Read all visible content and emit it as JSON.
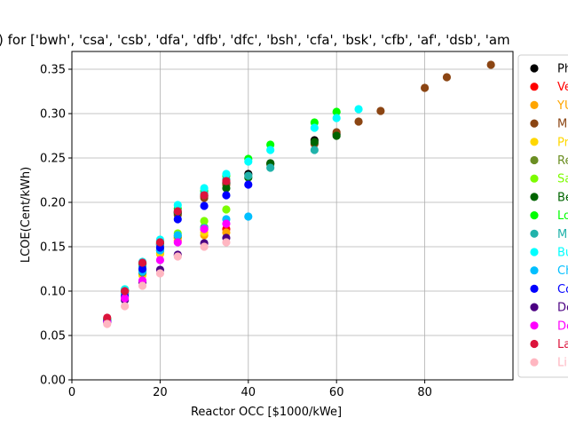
{
  "chart_data": {
    "type": "scatter",
    "title": ") for ['bwh', 'csa', 'csb', 'dfa', 'dfb', 'dfc', 'bsh', 'cfa', 'bsk', 'cfb', 'af', 'dsb', 'am",
    "xlabel": "Reactor OCC [$1000/kWe]",
    "ylabel": "LCOE(Cent/kWh)",
    "xlim": [
      0,
      100
    ],
    "ylim": [
      0,
      0.37
    ],
    "x_ticks": [
      0,
      20,
      40,
      60,
      80
    ],
    "y_ticks": [
      0.0,
      0.05,
      0.1,
      0.15,
      0.2,
      0.25,
      0.3,
      0.35
    ],
    "grid": true,
    "legend_position": "right",
    "series": [
      {
        "name": "Ph",
        "color": "#000000",
        "points": [
          [
            8,
            0.068
          ],
          [
            12,
            0.101
          ],
          [
            16,
            0.131
          ],
          [
            20,
            0.153
          ],
          [
            24,
            0.188
          ],
          [
            30,
            0.207
          ],
          [
            35,
            0.222
          ],
          [
            40,
            0.232
          ],
          [
            45,
            0.244
          ],
          [
            55,
            0.27
          ],
          [
            60,
            0.277
          ]
        ]
      },
      {
        "name": "Ve",
        "color": "#ff0000",
        "points": [
          [
            8,
            0.067
          ],
          [
            12,
            0.097
          ],
          [
            16,
            0.12
          ],
          [
            20,
            0.146
          ],
          [
            24,
            0.16
          ],
          [
            30,
            0.17
          ],
          [
            35,
            0.17
          ]
        ]
      },
      {
        "name": "YU",
        "color": "#ffa500",
        "points": [
          [
            8,
            0.066
          ],
          [
            12,
            0.096
          ],
          [
            16,
            0.118
          ],
          [
            20,
            0.142
          ],
          [
            24,
            0.157
          ],
          [
            30,
            0.163
          ],
          [
            35,
            0.166
          ]
        ]
      },
      {
        "name": "M",
        "color": "#8b4513",
        "points": [
          [
            8,
            0.069
          ],
          [
            12,
            0.1
          ],
          [
            16,
            0.13
          ],
          [
            20,
            0.152
          ],
          [
            24,
            0.186
          ],
          [
            30,
            0.205
          ],
          [
            35,
            0.22
          ],
          [
            45,
            0.243
          ],
          [
            55,
            0.266
          ],
          [
            60,
            0.279
          ],
          [
            65,
            0.291
          ],
          [
            70,
            0.303
          ],
          [
            80,
            0.329
          ],
          [
            85,
            0.341
          ],
          [
            95,
            0.355
          ]
        ]
      },
      {
        "name": "Pr",
        "color": "#ffd700",
        "points": [
          [
            8,
            0.066
          ],
          [
            12,
            0.096
          ],
          [
            16,
            0.118
          ],
          [
            20,
            0.143
          ],
          [
            24,
            0.16
          ],
          [
            30,
            0.166
          ]
        ]
      },
      {
        "name": "Re",
        "color": "#6b8e23",
        "points": [
          [
            8,
            0.067
          ],
          [
            12,
            0.098
          ],
          [
            16,
            0.121
          ],
          [
            20,
            0.146
          ],
          [
            24,
            0.162
          ],
          [
            30,
            0.172
          ]
        ]
      },
      {
        "name": "Sa",
        "color": "#7cfc00",
        "points": [
          [
            8,
            0.068
          ],
          [
            12,
            0.099
          ],
          [
            16,
            0.124
          ],
          [
            20,
            0.148
          ],
          [
            24,
            0.165
          ],
          [
            30,
            0.179
          ],
          [
            35,
            0.192
          ]
        ]
      },
      {
        "name": "Be",
        "color": "#006400",
        "points": [
          [
            8,
            0.068
          ],
          [
            12,
            0.101
          ],
          [
            16,
            0.131
          ],
          [
            20,
            0.154
          ],
          [
            24,
            0.189
          ],
          [
            30,
            0.208
          ],
          [
            35,
            0.216
          ],
          [
            40,
            0.228
          ],
          [
            45,
            0.244
          ],
          [
            55,
            0.268
          ],
          [
            60,
            0.275
          ]
        ]
      },
      {
        "name": "Lo",
        "color": "#00ff00",
        "points": [
          [
            8,
            0.069
          ],
          [
            12,
            0.102
          ],
          [
            16,
            0.132
          ],
          [
            20,
            0.156
          ],
          [
            24,
            0.193
          ],
          [
            30,
            0.213
          ],
          [
            35,
            0.23
          ],
          [
            40,
            0.249
          ],
          [
            45,
            0.265
          ],
          [
            55,
            0.29
          ],
          [
            60,
            0.302
          ]
        ]
      },
      {
        "name": "M",
        "color": "#20b2aa",
        "points": [
          [
            8,
            0.067
          ],
          [
            12,
            0.099
          ],
          [
            16,
            0.128
          ],
          [
            20,
            0.152
          ],
          [
            24,
            0.19
          ],
          [
            30,
            0.21
          ],
          [
            35,
            0.226
          ],
          [
            40,
            0.23
          ],
          [
            45,
            0.239
          ],
          [
            55,
            0.259
          ]
        ]
      },
      {
        "name": "Bu",
        "color": "#00ffff",
        "points": [
          [
            8,
            0.069
          ],
          [
            12,
            0.102
          ],
          [
            16,
            0.133
          ],
          [
            20,
            0.158
          ],
          [
            24,
            0.197
          ],
          [
            30,
            0.216
          ],
          [
            35,
            0.232
          ],
          [
            40,
            0.246
          ],
          [
            45,
            0.259
          ],
          [
            55,
            0.284
          ],
          [
            60,
            0.295
          ],
          [
            65,
            0.305
          ]
        ]
      },
      {
        "name": "Ch",
        "color": "#00bfff",
        "points": [
          [
            8,
            0.066
          ],
          [
            12,
            0.097
          ],
          [
            16,
            0.122
          ],
          [
            20,
            0.146
          ],
          [
            24,
            0.163
          ],
          [
            30,
            0.171
          ],
          [
            35,
            0.181
          ],
          [
            40,
            0.184
          ]
        ]
      },
      {
        "name": "Co",
        "color": "#0000ff",
        "points": [
          [
            8,
            0.066
          ],
          [
            12,
            0.094
          ],
          [
            16,
            0.125
          ],
          [
            20,
            0.149
          ],
          [
            24,
            0.181
          ],
          [
            30,
            0.196
          ],
          [
            35,
            0.208
          ],
          [
            40,
            0.22
          ]
        ]
      },
      {
        "name": "De",
        "color": "#4b0082",
        "points": [
          [
            8,
            0.065
          ],
          [
            12,
            0.09
          ],
          [
            16,
            0.11
          ],
          [
            20,
            0.124
          ],
          [
            24,
            0.141
          ],
          [
            30,
            0.154
          ],
          [
            35,
            0.16
          ]
        ]
      },
      {
        "name": "De",
        "color": "#ff00ff",
        "points": [
          [
            8,
            0.065
          ],
          [
            12,
            0.092
          ],
          [
            16,
            0.112
          ],
          [
            20,
            0.135
          ],
          [
            24,
            0.155
          ],
          [
            30,
            0.17
          ],
          [
            35,
            0.176
          ]
        ]
      },
      {
        "name": "La",
        "color": "#dc143c",
        "points": [
          [
            8,
            0.07
          ],
          [
            12,
            0.1
          ],
          [
            16,
            0.132
          ],
          [
            20,
            0.155
          ],
          [
            24,
            0.19
          ],
          [
            30,
            0.208
          ],
          [
            35,
            0.224
          ]
        ]
      },
      {
        "name": "Li",
        "color": "#ffb6c1",
        "points": [
          [
            8,
            0.063
          ],
          [
            12,
            0.083
          ],
          [
            16,
            0.106
          ],
          [
            20,
            0.12
          ],
          [
            24,
            0.139
          ],
          [
            30,
            0.15
          ],
          [
            35,
            0.155
          ]
        ]
      }
    ]
  }
}
